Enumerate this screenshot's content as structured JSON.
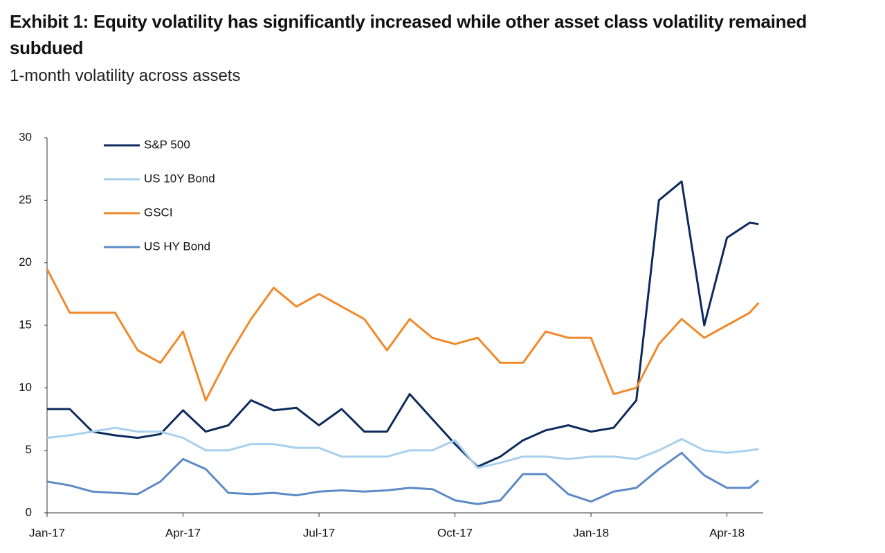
{
  "chart_data": {
    "type": "line",
    "title": "Exhibit 1: Equity volatility has significantly increased while other asset class volatility remained subdued",
    "subtitle": "1-month volatility across assets",
    "x": [
      0,
      0.5,
      1,
      1.5,
      2,
      2.5,
      3,
      3.5,
      4,
      4.5,
      5,
      5.5,
      6,
      6.5,
      7,
      7.5,
      8,
      8.5,
      9,
      9.5,
      10,
      10.5,
      11,
      11.5,
      12,
      12.5,
      13,
      13.5,
      14,
      14.5,
      15,
      15.5,
      15.7
    ],
    "xlim": [
      0,
      15.8
    ],
    "xticks": [
      {
        "value": 0,
        "label": "Jan-17"
      },
      {
        "value": 3,
        "label": "Apr-17"
      },
      {
        "value": 6,
        "label": "Jul-17"
      },
      {
        "value": 9,
        "label": "Oct-17"
      },
      {
        "value": 12,
        "label": "Jan-18"
      },
      {
        "value": 15,
        "label": "Apr-18"
      }
    ],
    "ylim": [
      0,
      30
    ],
    "yticks": [
      0,
      5,
      10,
      15,
      20,
      25,
      30
    ],
    "grid": false,
    "legend": "upper-left",
    "series": [
      {
        "name": "S&P 500",
        "color": "#0d2a5c",
        "values": [
          8.3,
          8.3,
          6.5,
          6.2,
          6.0,
          6.3,
          8.2,
          6.5,
          7.0,
          9.0,
          8.2,
          8.4,
          7.0,
          8.3,
          6.5,
          6.5,
          9.5,
          7.5,
          5.5,
          3.7,
          4.5,
          5.8,
          6.6,
          7.0,
          6.5,
          6.8,
          9.0,
          25.0,
          26.5,
          15.0,
          22.0,
          23.2,
          23.1
        ]
      },
      {
        "name": "US 10Y Bond",
        "color": "#a8d0ee",
        "values": [
          6.0,
          6.2,
          6.5,
          6.8,
          6.5,
          6.5,
          6.0,
          5.0,
          5.0,
          5.5,
          5.5,
          5.2,
          5.2,
          4.5,
          4.5,
          4.5,
          5.0,
          5.0,
          5.8,
          3.6,
          4.0,
          4.5,
          4.5,
          4.3,
          4.5,
          4.5,
          4.3,
          5.0,
          5.9,
          5.0,
          4.8,
          5.0,
          5.1
        ]
      },
      {
        "name": "GSCI",
        "color": "#f0892a",
        "values": [
          19.5,
          16.0,
          16.0,
          16.0,
          13.0,
          12.0,
          14.5,
          9.0,
          12.5,
          15.5,
          18.0,
          16.5,
          17.5,
          16.5,
          15.5,
          13.0,
          15.5,
          14.0,
          13.5,
          14.0,
          12.0,
          12.0,
          14.5,
          14.0,
          14.0,
          9.5,
          10.0,
          13.5,
          15.5,
          14.0,
          15.0,
          16.0,
          16.8
        ]
      },
      {
        "name": "US HY Bond",
        "color": "#5b8ac7",
        "values": [
          2.5,
          2.2,
          1.7,
          1.6,
          1.5,
          2.5,
          4.3,
          3.5,
          1.6,
          1.5,
          1.6,
          1.4,
          1.7,
          1.8,
          1.7,
          1.8,
          2.0,
          1.9,
          1.0,
          0.7,
          1.0,
          3.1,
          3.1,
          1.5,
          0.9,
          1.7,
          2.0,
          3.5,
          4.8,
          3.0,
          2.0,
          2.0,
          2.6
        ]
      }
    ]
  }
}
